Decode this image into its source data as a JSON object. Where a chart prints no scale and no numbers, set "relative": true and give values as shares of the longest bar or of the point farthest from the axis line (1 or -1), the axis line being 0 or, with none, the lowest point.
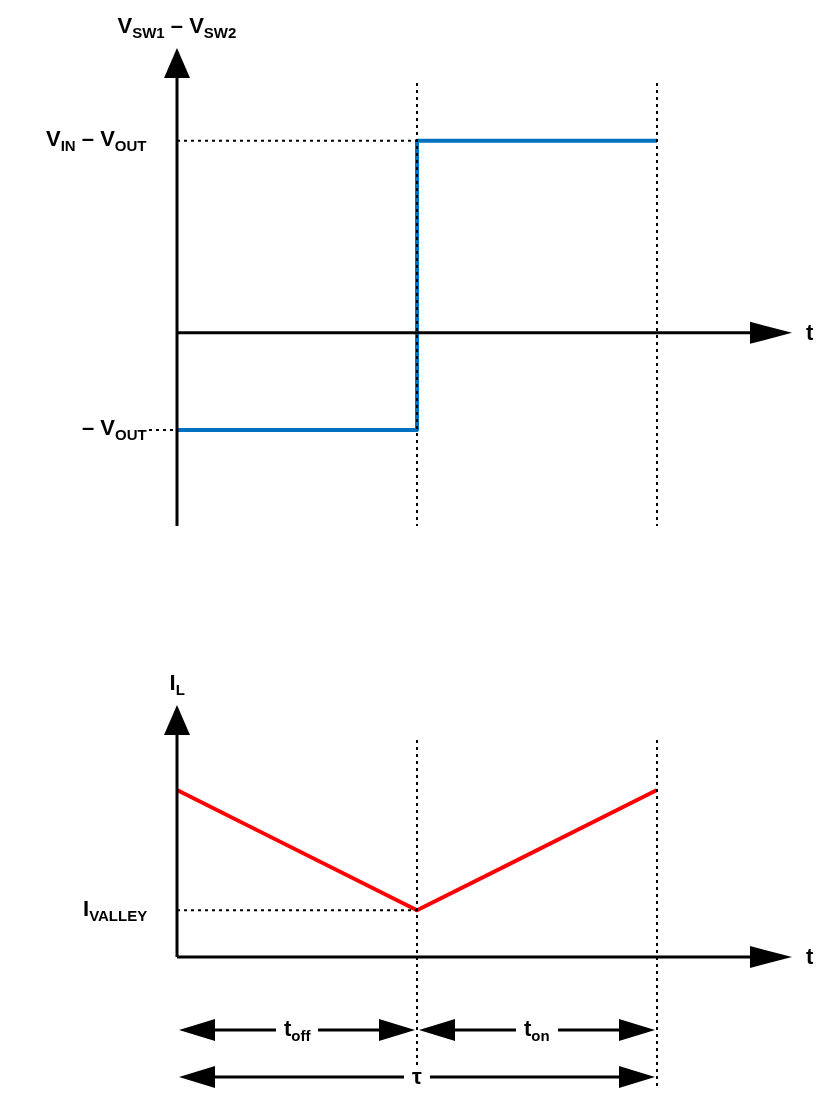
{
  "chart_data": [
    {
      "type": "step",
      "ylabel": "V$_{SW1}$ – V$_{SW2}$",
      "xlabel": "t",
      "relative": true,
      "categories": [
        null,
        null,
        null
      ],
      "values": [
        -0.505,
        1,
        1
      ],
      "color": "#0070c0",
      "ref_lines": [
        {
          "axis": "y",
          "value": 1,
          "label": "V$_{IN}$ – V$_{OUT}$",
          "line_style": "dotted"
        },
        {
          "axis": "y",
          "value": -0.505,
          "label": "– V$_{OUT}$",
          "line_style": "dotted"
        }
      ]
    },
    {
      "type": "line",
      "ylabel": "I$_{L}$",
      "xlabel": "t",
      "relative": true,
      "categories": [
        null,
        null,
        null
      ],
      "values": [
        1,
        0.28,
        1
      ],
      "color": "#ff0000",
      "ref_lines": [
        {
          "axis": "y",
          "value": 0.28,
          "label": "I$_{VALLEY}$",
          "line_style": "dotted"
        }
      ],
      "annotations": [
        "t$_{off}$",
        "t$_{on}$",
        "τ"
      ]
    }
  ]
}
